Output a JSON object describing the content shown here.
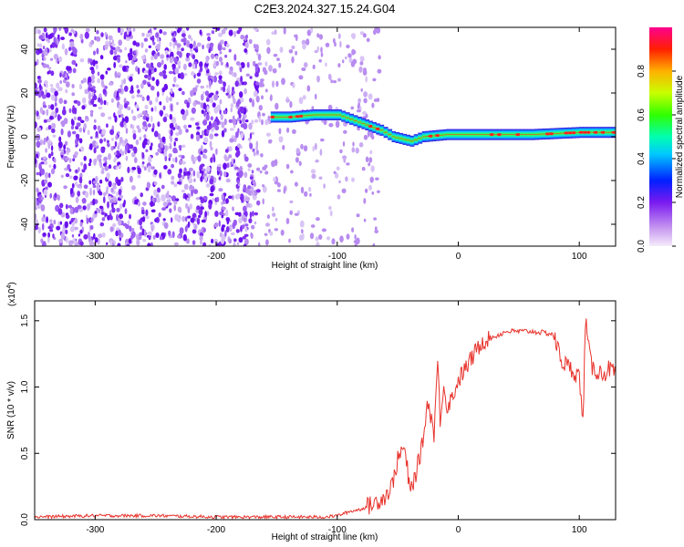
{
  "title": "C2E3.2024.327.15.24.G04",
  "colorbar": {
    "label": "Normalized spectral amplitude",
    "ticks": [
      "0.0",
      "0.2",
      "0.4",
      "0.6",
      "0.8"
    ],
    "tick_values": [
      0.0,
      0.2,
      0.4,
      0.6,
      0.8
    ],
    "range": [
      0,
      1
    ]
  },
  "chart_data": [
    {
      "type": "heatmap",
      "xlabel": "Height of straight line (km)",
      "ylabel": "Frequency (Hz)",
      "xlim": [
        -350,
        130
      ],
      "ylim": [
        -50,
        50
      ],
      "x_ticks": [
        -300,
        -200,
        -100,
        0,
        100
      ],
      "x_tick_labels": [
        "-300",
        "-200",
        "-100",
        "0",
        "100"
      ],
      "y_ticks": [
        -40,
        -20,
        0,
        20,
        40
      ],
      "y_tick_labels": [
        "-40",
        "-20",
        "0",
        "20",
        "40"
      ],
      "signal_track": [
        {
          "x": -155,
          "freq": 9
        },
        {
          "x": -140,
          "freq": 9
        },
        {
          "x": -120,
          "freq": 10
        },
        {
          "x": -100,
          "freq": 10
        },
        {
          "x": -90,
          "freq": 8
        },
        {
          "x": -80,
          "freq": 6
        },
        {
          "x": -65,
          "freq": 3
        },
        {
          "x": -55,
          "freq": 0
        },
        {
          "x": -40,
          "freq": -2
        },
        {
          "x": -30,
          "freq": 0
        },
        {
          "x": -10,
          "freq": 1
        },
        {
          "x": 20,
          "freq": 1
        },
        {
          "x": 60,
          "freq": 1
        },
        {
          "x": 100,
          "freq": 2
        },
        {
          "x": 130,
          "freq": 2
        }
      ],
      "noise_region": [
        -350,
        -75
      ]
    },
    {
      "type": "line",
      "xlabel": "Height of straight line (km)",
      "ylabel": "SNR (10 * v/v)",
      "y_multiplier_label": "(x10",
      "y_multiplier_exp": "4",
      "y_multiplier_close": ")",
      "xlim": [
        -350,
        130
      ],
      "ylim": [
        0,
        1.65
      ],
      "x_ticks": [
        -300,
        -200,
        -100,
        0,
        100
      ],
      "x_tick_labels": [
        "-300",
        "-200",
        "-100",
        "0",
        "100"
      ],
      "y_ticks": [
        0.0,
        0.5,
        1.0,
        1.5
      ],
      "y_tick_labels": [
        "0.0",
        "0.5",
        "1.0",
        "1.5"
      ],
      "series": [
        {
          "color": "#e8332c",
          "x": [
            -350,
            -300,
            -250,
            -200,
            -150,
            -110,
            -100,
            -90,
            -80,
            -70,
            -60,
            -55,
            -50,
            -45,
            -42,
            -40,
            -35,
            -30,
            -25,
            -20,
            -17,
            -15,
            -12,
            -10,
            -5,
            0,
            10,
            20,
            30,
            40,
            50,
            60,
            70,
            78,
            82,
            85,
            90,
            95,
            100,
            103,
            105,
            110,
            115,
            120,
            125,
            130
          ],
          "y": [
            0.02,
            0.03,
            0.03,
            0.02,
            0.02,
            0.02,
            0.03,
            0.06,
            0.08,
            0.12,
            0.18,
            0.25,
            0.45,
            0.55,
            0.38,
            0.2,
            0.35,
            0.55,
            0.9,
            0.65,
            1.2,
            0.75,
            1.05,
            0.85,
            0.92,
            1.05,
            1.2,
            1.35,
            1.38,
            1.42,
            1.42,
            1.42,
            1.41,
            1.4,
            1.3,
            1.2,
            1.16,
            1.12,
            1.08,
            0.72,
            1.5,
            1.15,
            1.12,
            1.1,
            1.14,
            1.1
          ]
        }
      ]
    }
  ]
}
